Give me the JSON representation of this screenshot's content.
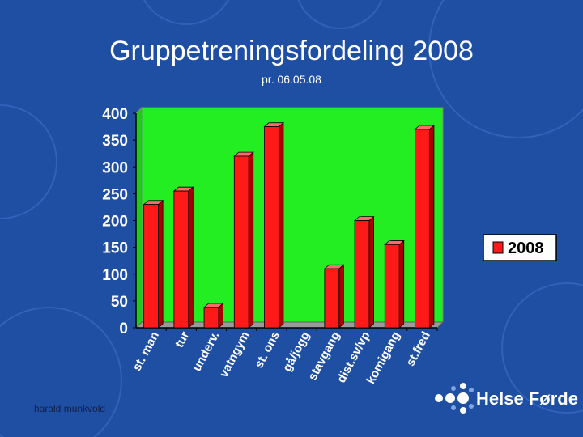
{
  "slide": {
    "title": "Gruppetreningsfordeling 2008",
    "subtitle": "pr. 06.05.08",
    "footer_text": "harald munkvold",
    "logo_text": "Helse Førde",
    "background_color": "#1f4fa3",
    "text_color": "#ffffff"
  },
  "chart_data": {
    "type": "bar",
    "categories": [
      "st. man",
      "tur",
      "underv.",
      "vatngym",
      "st. ons",
      "gå/jogg",
      "stavgang",
      "dist.sv/vp",
      "komigang",
      "st.fred"
    ],
    "series": [
      {
        "name": "2008",
        "values": [
          230,
          255,
          38,
          320,
          375,
          0,
          110,
          200,
          155,
          370
        ]
      }
    ],
    "yticks": [
      "0",
      "50",
      "100",
      "150",
      "200",
      "250",
      "300",
      "350",
      "400"
    ],
    "ylim": [
      0,
      400
    ],
    "legend_position": "right",
    "plot_background": "#22ee22",
    "bar_color": "#ff1a1a",
    "grid": false
  }
}
